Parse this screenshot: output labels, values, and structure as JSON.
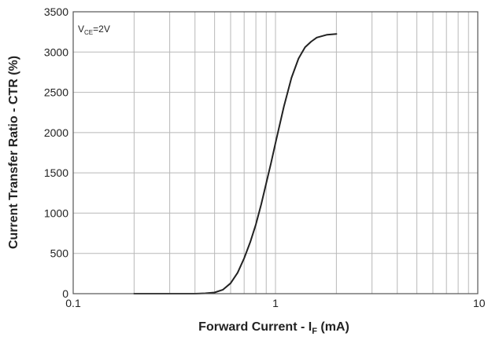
{
  "chart_data": {
    "type": "line",
    "title": "",
    "xlabel_main": "Forward Current - I",
    "xlabel_sub": "F",
    "xlabel_unit": " (mA)",
    "ylabel": "Current Transfer Ratio - CTR (%)",
    "annotation_main": "V",
    "annotation_sub": "CE",
    "annotation_rest": "=2V",
    "xscale": "log",
    "xlim": [
      0.1,
      10
    ],
    "ylim": [
      0,
      3500
    ],
    "grid": true,
    "x_tick_labels": [
      "0.1",
      "1",
      "10"
    ],
    "y_tick_labels": [
      "0",
      "500",
      "1000",
      "1500",
      "2000",
      "2500",
      "3000",
      "3500"
    ],
    "series": [
      {
        "x": [
          0.2,
          0.3,
          0.4,
          0.45,
          0.5,
          0.55,
          0.6,
          0.65,
          0.7,
          0.75,
          0.8,
          0.85,
          0.9,
          0.95,
          1.0,
          1.1,
          1.2,
          1.3,
          1.4,
          1.5,
          1.6,
          1.8,
          2.0
        ],
        "y": [
          0,
          0,
          0,
          5,
          15,
          50,
          130,
          260,
          440,
          640,
          860,
          1110,
          1370,
          1620,
          1870,
          2320,
          2680,
          2920,
          3060,
          3130,
          3180,
          3215,
          3225
        ]
      }
    ]
  }
}
